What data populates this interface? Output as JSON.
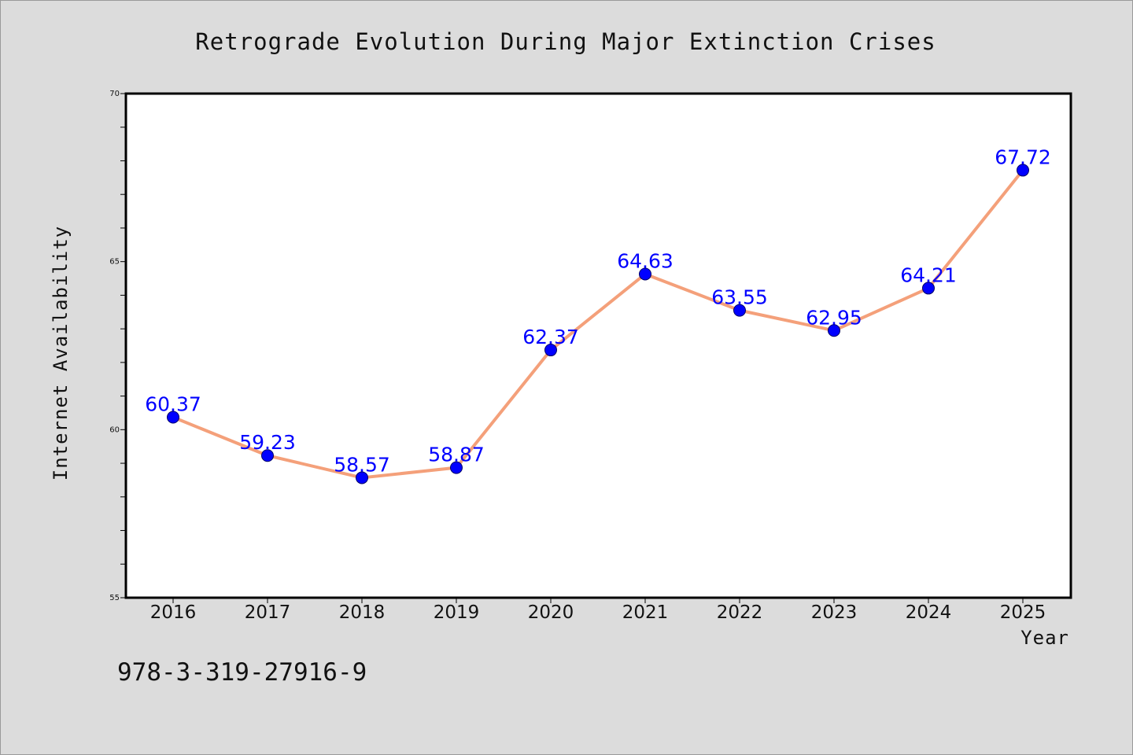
{
  "chart_data": {
    "type": "line",
    "title": "Retrograde Evolution During Major Extinction Crises",
    "xlabel": "Year",
    "ylabel": "Internet Availability",
    "x": [
      "2016",
      "2017",
      "2018",
      "2019",
      "2020",
      "2021",
      "2022",
      "2023",
      "2024",
      "2025"
    ],
    "series": [
      {
        "values": [
          60.37,
          59.23,
          58.57,
          58.87,
          62.37,
          64.63,
          63.55,
          62.95,
          64.21,
          67.72
        ],
        "labels": [
          "60.37",
          "59.23",
          "58.57",
          "58.87",
          "62.37",
          "64.63",
          "63.55",
          "62.95",
          "64.21",
          "67.72"
        ],
        "line_color": "#f4a07a",
        "marker_color": "#0000ff"
      }
    ],
    "ylim": [
      55,
      70
    ],
    "y_ticks": [
      "55",
      "60",
      "65",
      "70"
    ],
    "grid": false,
    "legend": false
  },
  "footer": {
    "text": "978-3-319-27916-9"
  },
  "colors": {
    "background": "#dcdcdc",
    "plot_background": "#ffffff",
    "line": "#f4a07a",
    "marker": "#0000ff",
    "data_label": "#0000ff"
  }
}
